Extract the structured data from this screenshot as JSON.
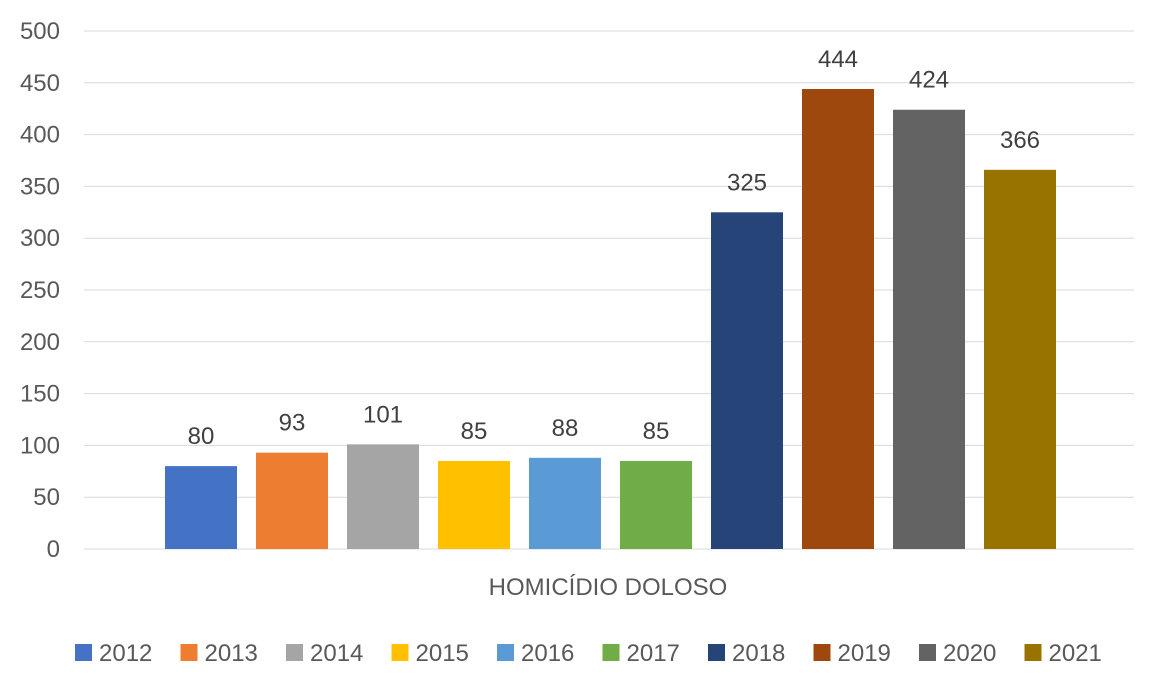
{
  "chart_data": {
    "type": "bar",
    "categories": [
      "HOMICÍDIO DOLOSO"
    ],
    "series": [
      {
        "name": "2012",
        "values": [
          80
        ],
        "color": "#4472C4"
      },
      {
        "name": "2013",
        "values": [
          93
        ],
        "color": "#ED7D31"
      },
      {
        "name": "2014",
        "values": [
          101
        ],
        "color": "#A5A5A5"
      },
      {
        "name": "2015",
        "values": [
          85
        ],
        "color": "#FFC000"
      },
      {
        "name": "2016",
        "values": [
          88
        ],
        "color": "#5B9BD5"
      },
      {
        "name": "2017",
        "values": [
          85
        ],
        "color": "#70AD47"
      },
      {
        "name": "2018",
        "values": [
          325
        ],
        "color": "#264478"
      },
      {
        "name": "2019",
        "values": [
          444
        ],
        "color": "#9E480E"
      },
      {
        "name": "2020",
        "values": [
          424
        ],
        "color": "#636363"
      },
      {
        "name": "2021",
        "values": [
          366
        ],
        "color": "#997300"
      }
    ],
    "yticks": [
      0,
      50,
      100,
      150,
      200,
      250,
      300,
      350,
      400,
      450,
      500
    ],
    "ylim": [
      0,
      500
    ],
    "grid": true,
    "gridline_color": "#d9d9d9",
    "data_labels": true,
    "legend_position": "bottom"
  }
}
